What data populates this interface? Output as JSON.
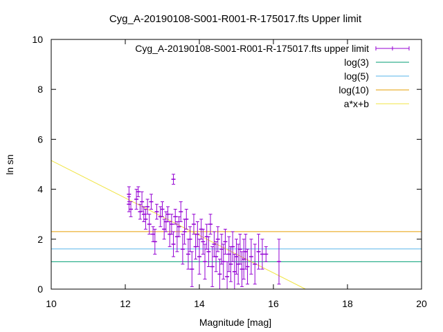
{
  "chart_data": {
    "type": "scatter",
    "title": "Cyg_A-20190108-S001-R001-R-175017.fts Upper limit",
    "xlabel": "Magnitude [mag]",
    "ylabel": "ln sn",
    "xlim": [
      10,
      20
    ],
    "ylim": [
      0,
      10
    ],
    "xticks": [
      "10",
      "12",
      "14",
      "16",
      "18",
      "20"
    ],
    "yticks": [
      "0",
      "2",
      "4",
      "6",
      "8",
      "10"
    ],
    "grid": false,
    "legend_position": "top-right",
    "legend": [
      {
        "label": "Cyg_A-20190108-S001-R001-R-175017.fts upper limit",
        "color": "#9400d3",
        "kind": "errorbar"
      },
      {
        "label": "log(3)",
        "color": "#009e73",
        "kind": "line"
      },
      {
        "label": "log(5)",
        "color": "#56b4e9",
        "kind": "line"
      },
      {
        "label": "log(10)",
        "color": "#e69f00",
        "kind": "line"
      },
      {
        "label": "a*x+b",
        "color": "#f0e442",
        "kind": "line"
      }
    ],
    "hlines": [
      {
        "name": "log(3)",
        "y": 1.0986,
        "color": "#009e73"
      },
      {
        "name": "log(5)",
        "y": 1.6094,
        "color": "#56b4e9"
      },
      {
        "name": "log(10)",
        "y": 2.3026,
        "color": "#e69f00"
      }
    ],
    "fit": {
      "name": "a*x+b",
      "a": -0.75,
      "b": 12.65,
      "color": "#f0e442"
    },
    "series": [
      {
        "name": "Cyg_A-20190108-S001-R001-R-175017.fts upper limit",
        "color": "#9400d3",
        "points": [
          {
            "x": 12.1,
            "y": 3.8,
            "err": 0.3
          },
          {
            "x": 12.1,
            "y": 3.4,
            "err": 0.3
          },
          {
            "x": 12.15,
            "y": 3.2,
            "err": 0.3
          },
          {
            "x": 12.3,
            "y": 3.6,
            "err": 0.4
          },
          {
            "x": 12.35,
            "y": 3.9,
            "err": 0.2
          },
          {
            "x": 12.4,
            "y": 3.1,
            "err": 0.3
          },
          {
            "x": 12.45,
            "y": 3.5,
            "err": 0.4
          },
          {
            "x": 12.5,
            "y": 3.0,
            "err": 0.3
          },
          {
            "x": 12.55,
            "y": 2.8,
            "err": 0.4
          },
          {
            "x": 12.6,
            "y": 3.3,
            "err": 0.3
          },
          {
            "x": 12.65,
            "y": 2.6,
            "err": 0.4
          },
          {
            "x": 12.7,
            "y": 3.5,
            "err": 0.3
          },
          {
            "x": 12.75,
            "y": 2.2,
            "err": 0.3
          },
          {
            "x": 12.8,
            "y": 1.9,
            "err": 0.5
          },
          {
            "x": 12.85,
            "y": 3.1,
            "err": 0.3
          },
          {
            "x": 12.95,
            "y": 2.9,
            "err": 0.4
          },
          {
            "x": 13.0,
            "y": 3.2,
            "err": 0.3
          },
          {
            "x": 13.05,
            "y": 2.4,
            "err": 0.4
          },
          {
            "x": 13.1,
            "y": 2.7,
            "err": 0.4
          },
          {
            "x": 13.15,
            "y": 3.0,
            "err": 0.3
          },
          {
            "x": 13.2,
            "y": 2.2,
            "err": 0.5
          },
          {
            "x": 13.25,
            "y": 2.6,
            "err": 0.4
          },
          {
            "x": 13.3,
            "y": 4.4,
            "err": 0.2
          },
          {
            "x": 13.3,
            "y": 1.8,
            "err": 0.5
          },
          {
            "x": 13.35,
            "y": 2.9,
            "err": 0.3
          },
          {
            "x": 13.4,
            "y": 2.1,
            "err": 0.6
          },
          {
            "x": 13.45,
            "y": 2.5,
            "err": 0.4
          },
          {
            "x": 13.5,
            "y": 3.1,
            "err": 0.4
          },
          {
            "x": 13.55,
            "y": 1.6,
            "err": 0.6
          },
          {
            "x": 13.6,
            "y": 2.3,
            "err": 0.5
          },
          {
            "x": 13.65,
            "y": 2.8,
            "err": 0.4
          },
          {
            "x": 13.7,
            "y": 1.4,
            "err": 0.6
          },
          {
            "x": 13.75,
            "y": 2.0,
            "err": 0.5
          },
          {
            "x": 13.8,
            "y": 0.8,
            "err": 0.7
          },
          {
            "x": 13.85,
            "y": 2.6,
            "err": 0.4
          },
          {
            "x": 13.9,
            "y": 1.7,
            "err": 0.5
          },
          {
            "x": 13.95,
            "y": 2.2,
            "err": 0.5
          },
          {
            "x": 14.0,
            "y": 1.3,
            "err": 0.7
          },
          {
            "x": 14.05,
            "y": 2.4,
            "err": 0.4
          },
          {
            "x": 14.1,
            "y": 1.9,
            "err": 0.5
          },
          {
            "x": 14.15,
            "y": 1.1,
            "err": 0.7
          },
          {
            "x": 14.2,
            "y": 2.1,
            "err": 0.5
          },
          {
            "x": 14.25,
            "y": 1.5,
            "err": 0.6
          },
          {
            "x": 14.3,
            "y": 2.6,
            "err": 0.4
          },
          {
            "x": 14.35,
            "y": 0.9,
            "err": 0.8
          },
          {
            "x": 14.4,
            "y": 1.8,
            "err": 0.5
          },
          {
            "x": 14.45,
            "y": 1.3,
            "err": 0.6
          },
          {
            "x": 14.5,
            "y": 2.0,
            "err": 0.5
          },
          {
            "x": 14.55,
            "y": 0.6,
            "err": 0.6
          },
          {
            "x": 14.6,
            "y": 1.6,
            "err": 0.6
          },
          {
            "x": 14.65,
            "y": 1.1,
            "err": 0.7
          },
          {
            "x": 14.7,
            "y": 1.9,
            "err": 0.5
          },
          {
            "x": 14.75,
            "y": 0.5,
            "err": 0.6
          },
          {
            "x": 14.8,
            "y": 1.4,
            "err": 0.7
          },
          {
            "x": 14.85,
            "y": 1.0,
            "err": 0.7
          },
          {
            "x": 14.9,
            "y": 1.7,
            "err": 0.6
          },
          {
            "x": 14.95,
            "y": 0.7,
            "err": 0.7
          },
          {
            "x": 15.0,
            "y": 1.3,
            "err": 0.7
          },
          {
            "x": 15.05,
            "y": 1.0,
            "err": 0.8
          },
          {
            "x": 15.1,
            "y": 1.6,
            "err": 0.6
          },
          {
            "x": 15.15,
            "y": 0.8,
            "err": 0.7
          },
          {
            "x": 15.2,
            "y": 1.2,
            "err": 0.8
          },
          {
            "x": 15.25,
            "y": 1.5,
            "err": 0.7
          },
          {
            "x": 15.3,
            "y": 0.9,
            "err": 0.7
          },
          {
            "x": 15.4,
            "y": 1.3,
            "err": 0.7
          },
          {
            "x": 15.5,
            "y": 1.0,
            "err": 0.8
          },
          {
            "x": 15.6,
            "y": 1.5,
            "err": 0.7
          },
          {
            "x": 15.7,
            "y": 1.4,
            "err": 0.6
          },
          {
            "x": 15.8,
            "y": 1.4,
            "err": 0.3
          },
          {
            "x": 16.15,
            "y": 1.1,
            "err": 0.9
          }
        ]
      }
    ]
  }
}
